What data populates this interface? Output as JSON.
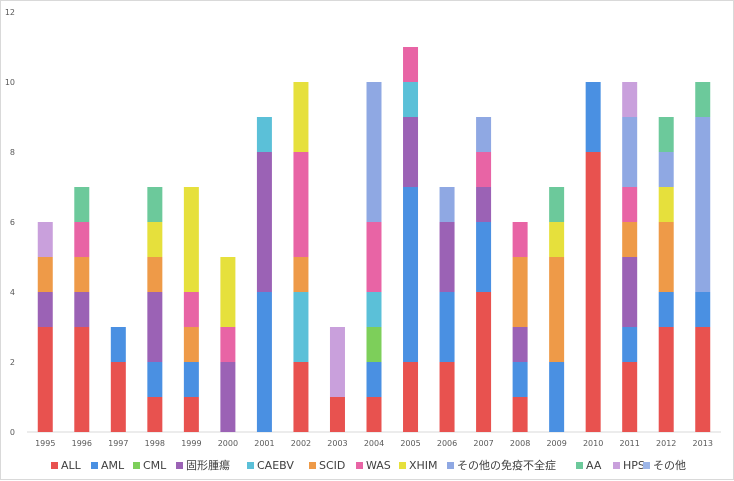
{
  "chart_data": {
    "type": "bar",
    "stacked": true,
    "title": "",
    "xlabel": "",
    "ylabel": "",
    "ylim": [
      0,
      12
    ],
    "yticks": [
      0,
      2,
      4,
      6,
      8,
      10,
      12
    ],
    "grid": false,
    "legend_position": "bottom",
    "categories": [
      "1995",
      "1996",
      "1997",
      "1998",
      "1999",
      "2000",
      "2001",
      "2002",
      "2003",
      "2004",
      "2005",
      "2006",
      "2007",
      "2008",
      "2009",
      "2010",
      "2011",
      "2012",
      "2013"
    ],
    "series": [
      {
        "name": "ALL",
        "color": "#E8524F",
        "values": [
          3,
          3,
          2,
          1,
          1,
          0,
          0,
          2,
          1,
          1,
          2,
          2,
          4,
          1,
          0,
          8,
          2,
          3,
          3
        ]
      },
      {
        "name": "AML",
        "color": "#4A90E2",
        "values": [
          0,
          0,
          1,
          1,
          1,
          0,
          4,
          0,
          0,
          1,
          5,
          2,
          2,
          1,
          2,
          2,
          1,
          1,
          1
        ]
      },
      {
        "name": "CML",
        "color": "#7DCF5A",
        "values": [
          0,
          0,
          0,
          0,
          0,
          0,
          0,
          0,
          0,
          1,
          0,
          0,
          0,
          0,
          0,
          0,
          0,
          0,
          0
        ]
      },
      {
        "name": "固形腫瘍",
        "color": "#9B62B5",
        "values": [
          1,
          1,
          0,
          2,
          0,
          2,
          4,
          0,
          0,
          0,
          2,
          2,
          1,
          1,
          0,
          0,
          2,
          0,
          0
        ]
      },
      {
        "name": "CAEBV",
        "color": "#5BC0D8",
        "values": [
          0,
          0,
          0,
          0,
          0,
          0,
          1,
          2,
          0,
          1,
          1,
          0,
          0,
          0,
          0,
          0,
          0,
          0,
          0
        ]
      },
      {
        "name": "SCID",
        "color": "#EE9A48",
        "values": [
          1,
          1,
          0,
          1,
          1,
          0,
          0,
          1,
          0,
          0,
          0,
          0,
          0,
          2,
          3,
          0,
          1,
          2,
          0
        ]
      },
      {
        "name": "WAS",
        "color": "#E864A5",
        "values": [
          0,
          1,
          0,
          0,
          1,
          1,
          0,
          3,
          0,
          2,
          1,
          0,
          1,
          1,
          0,
          0,
          1,
          0,
          0
        ]
      },
      {
        "name": "XHIM",
        "color": "#E6E03C",
        "values": [
          0,
          0,
          0,
          1,
          3,
          2,
          0,
          2,
          0,
          0,
          0,
          0,
          0,
          0,
          1,
          0,
          0,
          1,
          0
        ]
      },
      {
        "name": "その他の免疫不全症",
        "color": "#8FA8E3",
        "values": [
          0,
          0,
          0,
          0,
          0,
          0,
          0,
          0,
          0,
          4,
          0,
          1,
          1,
          0,
          0,
          0,
          2,
          1,
          5
        ]
      },
      {
        "name": "AA",
        "color": "#6CC99B",
        "values": [
          0,
          1,
          0,
          1,
          0,
          0,
          0,
          0,
          0,
          0,
          0,
          0,
          0,
          0,
          1,
          0,
          0,
          1,
          1
        ]
      },
      {
        "name": "HPS",
        "color": "#C9A0DC",
        "values": [
          1,
          0,
          0,
          0,
          0,
          0,
          0,
          0,
          2,
          0,
          0,
          0,
          0,
          0,
          0,
          0,
          1,
          0,
          0
        ]
      },
      {
        "name": "その他",
        "color": "#9DB6E8",
        "values": [
          0,
          0,
          0,
          0,
          0,
          0,
          0,
          0,
          0,
          0,
          0,
          0,
          0,
          0,
          0,
          0,
          0,
          0,
          0
        ]
      }
    ]
  }
}
